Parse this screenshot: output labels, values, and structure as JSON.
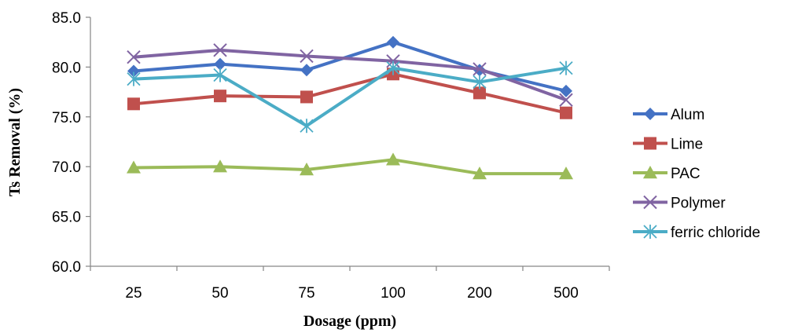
{
  "chart_data": {
    "type": "line",
    "title": "",
    "xlabel": "Dosage (ppm)",
    "ylabel": "Ts Removal (%)",
    "categories": [
      "25",
      "50",
      "75",
      "100",
      "200",
      "500"
    ],
    "ylim": [
      60,
      85
    ],
    "yticks": [
      "60.0",
      "65.0",
      "70.0",
      "75.0",
      "80.0",
      "85.0"
    ],
    "grid": false,
    "legend_position": "right",
    "series": [
      {
        "name": "Alum",
        "color": "#4472C4",
        "marker": "diamond",
        "values": [
          79.6,
          80.3,
          79.7,
          82.5,
          79.7,
          77.6
        ]
      },
      {
        "name": "Lime",
        "color": "#C0504D",
        "marker": "square",
        "values": [
          76.3,
          77.1,
          77.0,
          79.3,
          77.4,
          75.4
        ]
      },
      {
        "name": "PAC",
        "color": "#9BBB59",
        "marker": "triangle",
        "values": [
          69.9,
          70.0,
          69.7,
          70.7,
          69.3,
          69.3
        ]
      },
      {
        "name": "Polymer",
        "color": "#8064A2",
        "marker": "x",
        "values": [
          81.0,
          81.7,
          81.1,
          80.6,
          79.8,
          76.7
        ]
      },
      {
        "name": "ferric chloride",
        "color": "#4BACC6",
        "marker": "star",
        "values": [
          78.8,
          79.2,
          74.1,
          79.9,
          78.5,
          79.9
        ]
      }
    ]
  }
}
